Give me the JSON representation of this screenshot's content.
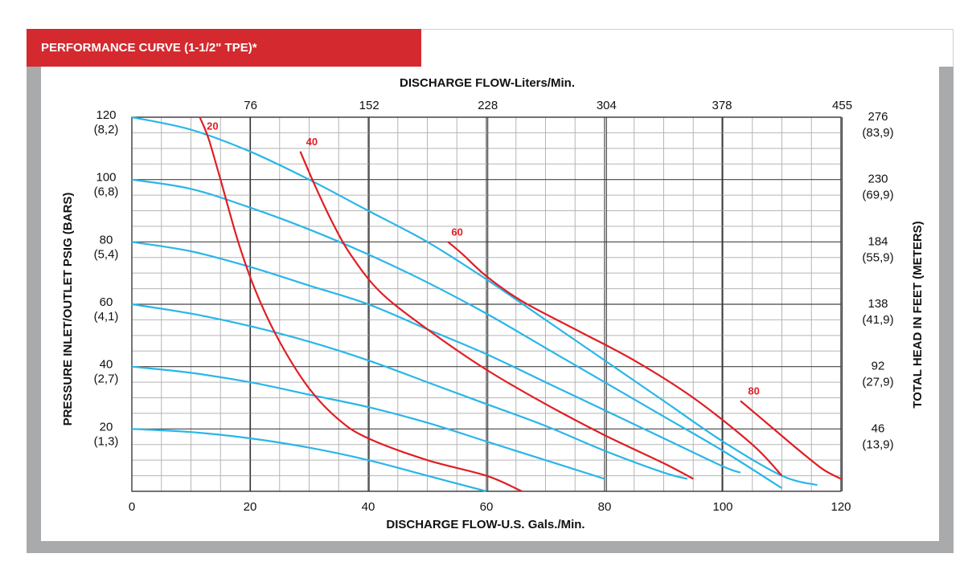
{
  "header": {
    "title": "PERFORMANCE CURVE  (1-1/2\" TPE)*"
  },
  "chart_data": {
    "type": "line",
    "x_top_label": "DISCHARGE FLOW-Liters/Min.",
    "x_bottom_label": "DISCHARGE FLOW-U.S. Gals./Min.",
    "y_left_label": "PRESSURE INLET/OUTLET PSIG (BARS)",
    "y_right_label": "TOTAL HEAD IN FEET (METERS)",
    "xlim": [
      0,
      120
    ],
    "ylim": [
      0,
      120
    ],
    "grid": true,
    "x_ticks": [
      "0",
      "20",
      "40",
      "60",
      "80",
      "100",
      "120"
    ],
    "x_top_ticks": [
      "76",
      "152",
      "228",
      "304",
      "378",
      "455"
    ],
    "y_left_ticks": [
      {
        "line1": "120",
        "line2": "(8,2)"
      },
      {
        "line1": "100",
        "line2": "(6,8)"
      },
      {
        "line1": "80",
        "line2": "(5,4)"
      },
      {
        "line1": "60",
        "line2": "(4,1)"
      },
      {
        "line1": "40",
        "line2": "(2,7)"
      },
      {
        "line1": "20",
        "line2": "(1,3)"
      }
    ],
    "y_right_ticks": [
      {
        "line1": "276",
        "line2": "(83,9)"
      },
      {
        "line1": "230",
        "line2": "(69,9)"
      },
      {
        "line1": "184",
        "line2": "(55,9)"
      },
      {
        "line1": "138",
        "line2": "(41,9)"
      },
      {
        "line1": "92",
        "line2": "(27,9)"
      },
      {
        "line1": "46",
        "line2": "(13,9)"
      }
    ],
    "colors": {
      "pressure": "#29b6e8",
      "air": "#e01e24",
      "grid": "#444444",
      "minor_grid": "#b5b5b5"
    },
    "pressure_curves": [
      {
        "points": [
          [
            0,
            120
          ],
          [
            10,
            116
          ],
          [
            20,
            109
          ],
          [
            30,
            100
          ],
          [
            40,
            90
          ],
          [
            50,
            80
          ],
          [
            60,
            68
          ],
          [
            70,
            55
          ],
          [
            80,
            42
          ],
          [
            90,
            29
          ],
          [
            100,
            16
          ],
          [
            110,
            5
          ],
          [
            116,
            2
          ]
        ]
      },
      {
        "points": [
          [
            0,
            100
          ],
          [
            10,
            97
          ],
          [
            20,
            91
          ],
          [
            30,
            84
          ],
          [
            40,
            76
          ],
          [
            50,
            67
          ],
          [
            60,
            57
          ],
          [
            70,
            46
          ],
          [
            80,
            35
          ],
          [
            90,
            24
          ],
          [
            100,
            13
          ],
          [
            110,
            1
          ]
        ]
      },
      {
        "points": [
          [
            0,
            80
          ],
          [
            10,
            77
          ],
          [
            20,
            72
          ],
          [
            30,
            66
          ],
          [
            40,
            60
          ],
          [
            50,
            52
          ],
          [
            60,
            44
          ],
          [
            70,
            35
          ],
          [
            80,
            26
          ],
          [
            90,
            17
          ],
          [
            100,
            8
          ],
          [
            103,
            6
          ]
        ]
      },
      {
        "points": [
          [
            0,
            60
          ],
          [
            10,
            57
          ],
          [
            20,
            53
          ],
          [
            30,
            48
          ],
          [
            40,
            42
          ],
          [
            50,
            35
          ],
          [
            60,
            28
          ],
          [
            70,
            21
          ],
          [
            80,
            13
          ],
          [
            90,
            6
          ],
          [
            94,
            4
          ]
        ]
      },
      {
        "points": [
          [
            0,
            40
          ],
          [
            10,
            38
          ],
          [
            20,
            35
          ],
          [
            30,
            31
          ],
          [
            40,
            27
          ],
          [
            50,
            22
          ],
          [
            60,
            16
          ],
          [
            70,
            10
          ],
          [
            80,
            4
          ]
        ]
      },
      {
        "points": [
          [
            0,
            20
          ],
          [
            10,
            19
          ],
          [
            20,
            17
          ],
          [
            30,
            14
          ],
          [
            40,
            10
          ],
          [
            50,
            5
          ],
          [
            60,
            0
          ]
        ]
      }
    ],
    "air_curves": [
      {
        "label": "20",
        "points": [
          [
            11.5,
            120
          ],
          [
            13,
            113
          ],
          [
            15,
            100
          ],
          [
            18,
            80
          ],
          [
            21,
            64
          ],
          [
            25,
            48
          ],
          [
            30,
            33
          ],
          [
            35,
            23
          ],
          [
            40,
            17
          ],
          [
            50,
            10
          ],
          [
            60,
            5
          ],
          [
            66,
            0
          ]
        ],
        "label_at": [
          12.4,
          116
        ]
      },
      {
        "label": "40",
        "points": [
          [
            28.5,
            109
          ],
          [
            31,
            98
          ],
          [
            34,
            86
          ],
          [
            37,
            76
          ],
          [
            42,
            64
          ],
          [
            50,
            52
          ],
          [
            60,
            39
          ],
          [
            70,
            28
          ],
          [
            80,
            18
          ],
          [
            90,
            9
          ],
          [
            95,
            4
          ]
        ],
        "label_at": [
          29.2,
          111
        ]
      },
      {
        "label": "60",
        "points": [
          [
            53.5,
            80
          ],
          [
            56,
            76
          ],
          [
            60,
            69
          ],
          [
            66,
            61
          ],
          [
            75,
            52
          ],
          [
            85,
            42
          ],
          [
            95,
            30
          ],
          [
            105,
            15
          ],
          [
            110,
            5
          ]
        ],
        "label_at": [
          53.8,
          82
        ]
      },
      {
        "label": "80",
        "points": [
          [
            103,
            29
          ],
          [
            108,
            21
          ],
          [
            113,
            13
          ],
          [
            117,
            7
          ],
          [
            120,
            4
          ]
        ],
        "label_at": [
          104,
          31
        ]
      }
    ]
  }
}
